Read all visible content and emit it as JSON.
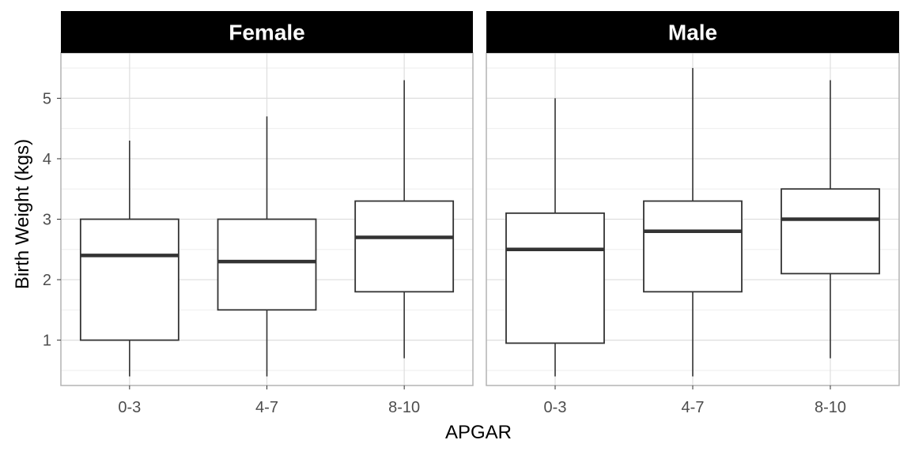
{
  "chart_data": {
    "type": "boxplot",
    "xlabel": "APGAR",
    "ylabel": "Birth Weight (kgs)",
    "categories": [
      "0-3",
      "4-7",
      "8-10"
    ],
    "ylim": [
      0.25,
      5.75
    ],
    "yticks": [
      1,
      2,
      3,
      4,
      5
    ],
    "grid": true,
    "facets": [
      {
        "label": "Female",
        "boxes": [
          {
            "category": "0-3",
            "min": 0.4,
            "q1": 1.0,
            "median": 2.4,
            "q3": 3.0,
            "max": 4.3
          },
          {
            "category": "4-7",
            "min": 0.4,
            "q1": 1.5,
            "median": 2.3,
            "q3": 3.0,
            "max": 4.7
          },
          {
            "category": "8-10",
            "min": 0.7,
            "q1": 1.8,
            "median": 2.7,
            "q3": 3.3,
            "max": 5.3
          }
        ]
      },
      {
        "label": "Male",
        "boxes": [
          {
            "category": "0-3",
            "min": 0.4,
            "q1": 0.95,
            "median": 2.5,
            "q3": 3.1,
            "max": 5.0
          },
          {
            "category": "4-7",
            "min": 0.4,
            "q1": 1.8,
            "median": 2.8,
            "q3": 3.3,
            "max": 5.5
          },
          {
            "category": "8-10",
            "min": 0.7,
            "q1": 2.1,
            "median": 3.0,
            "q3": 3.5,
            "max": 5.3
          }
        ]
      }
    ]
  },
  "colors": {
    "strip_background": "#000000",
    "strip_text": "#ffffff",
    "panel_border": "#b3b3b3",
    "grid_major": "#dedede",
    "grid_minor": "#eeeeee",
    "box_line": "#333333"
  }
}
